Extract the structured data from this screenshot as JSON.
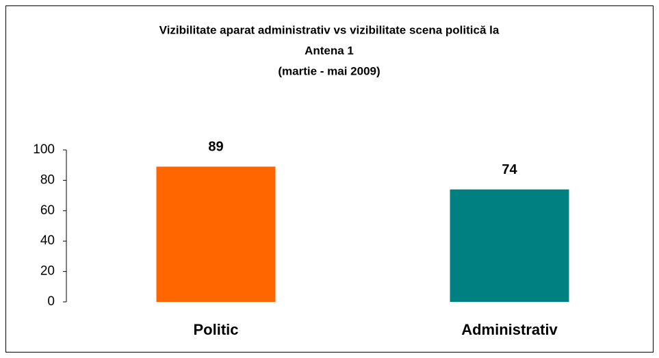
{
  "chart_data": {
    "type": "bar",
    "title": [
      "Vizibilitate aparat administrativ vs vizibilitate scena politică la",
      "Antena 1",
      "(martie - mai 2009)"
    ],
    "categories": [
      "Politic",
      "Administrativ"
    ],
    "values": [
      89,
      74
    ],
    "colors": [
      "#ff6600",
      "#008080"
    ],
    "ylim": [
      0,
      100
    ],
    "yticks": [
      0,
      20,
      40,
      60,
      80,
      100
    ],
    "grid": false
  }
}
